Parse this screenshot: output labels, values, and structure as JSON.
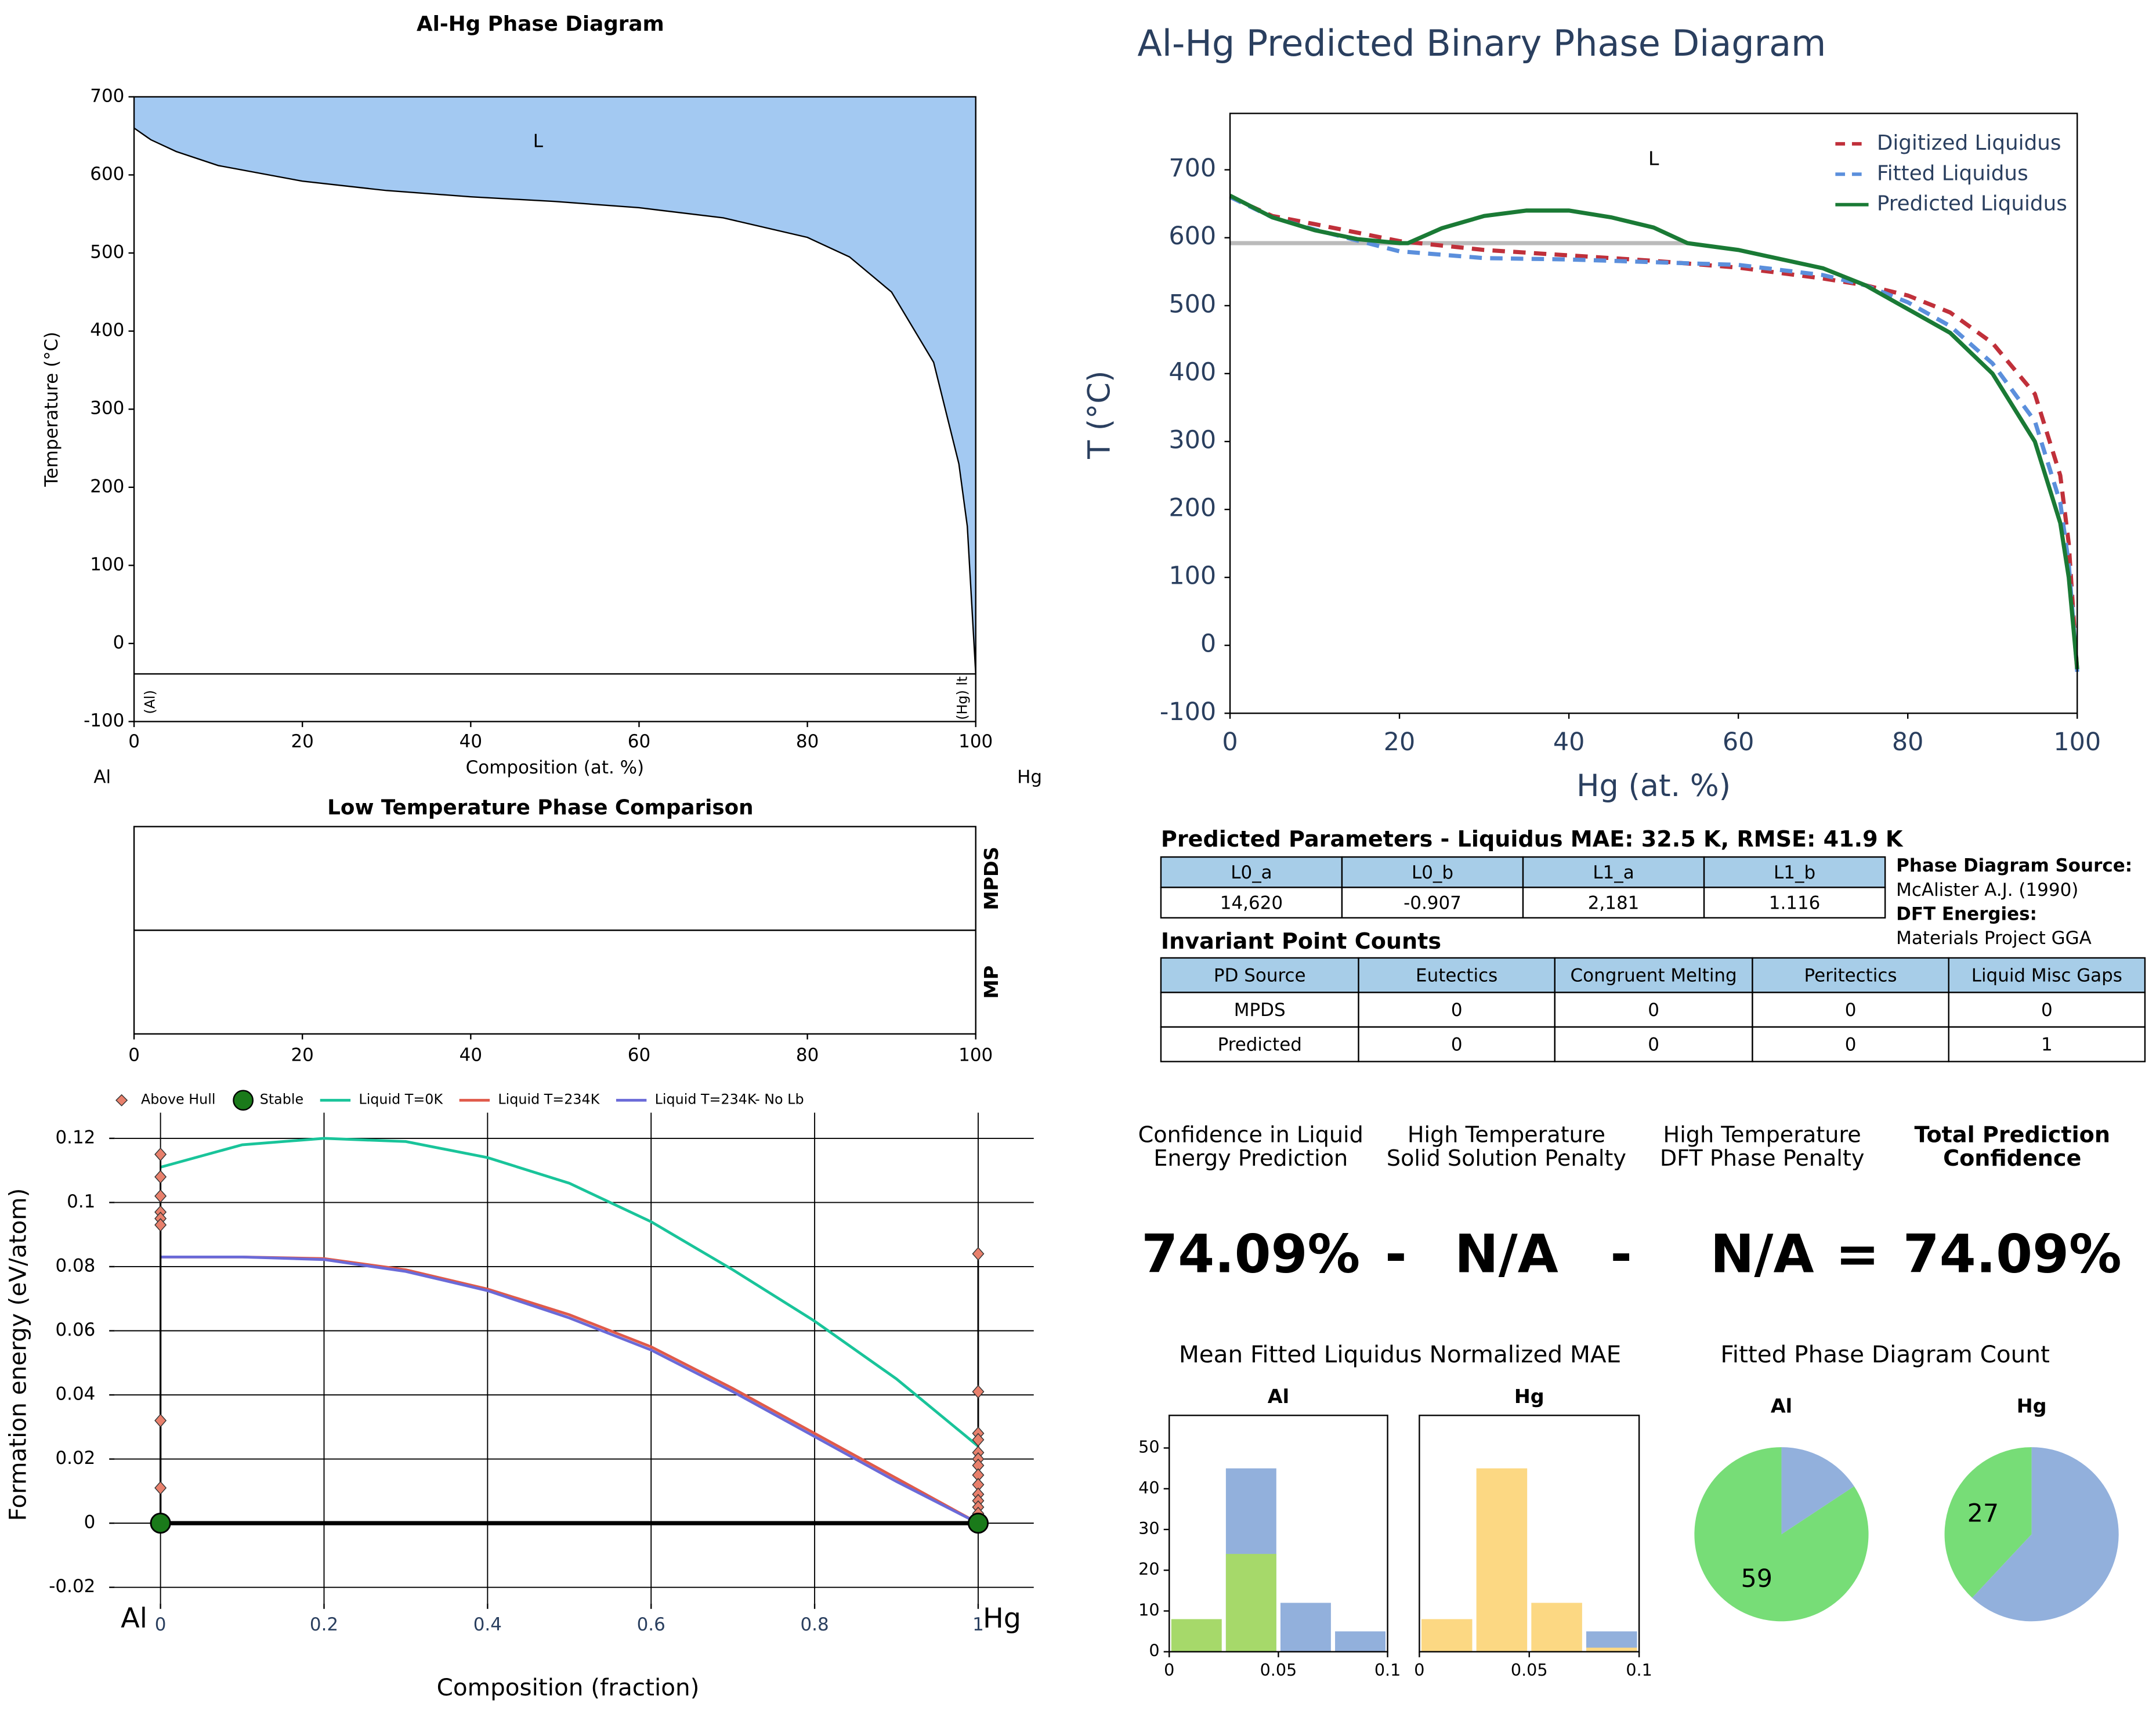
{
  "chart_data": [
    {
      "type": "area",
      "title": "Al-Hg Phase Diagram",
      "xlabel": "Composition (at. %)",
      "ylabel": "Temperature (°C)",
      "x": [
        0,
        2,
        5,
        10,
        20,
        30,
        40,
        50,
        60,
        70,
        80,
        85,
        90,
        95,
        98,
        99,
        100
      ],
      "values": [
        660,
        645,
        630,
        612,
        592,
        580,
        572,
        566,
        558,
        545,
        520,
        495,
        450,
        360,
        230,
        150,
        -39
      ],
      "color": "#a3c9f2",
      "xlim": [
        0,
        100
      ],
      "ylim": [
        -100,
        700
      ],
      "xticks": [
        0,
        20,
        40,
        60,
        80,
        100
      ],
      "yticks": [
        -100,
        0,
        100,
        200,
        300,
        400,
        500,
        600,
        700
      ],
      "hline": -39,
      "annotations": [
        {
          "text": "L",
          "x": 48,
          "y": 642
        },
        {
          "text": "(Al)",
          "x": 2,
          "y": -75,
          "rotation": -90
        },
        {
          "text": "(Hg) lt",
          "x": 98.5,
          "y": -70,
          "rotation": -90
        }
      ],
      "endpoints": [
        "Al",
        "Hg"
      ]
    },
    {
      "type": "strip",
      "title": "Low Temperature Phase Comparison",
      "categories": [
        "MPDS",
        "MP"
      ],
      "xlim": [
        0,
        100
      ],
      "xticks": [
        0,
        20,
        40,
        60,
        80,
        100
      ]
    },
    {
      "type": "hull",
      "xlabel": "Composition (fraction)",
      "ylabel": "Formation energy (eV/atom)",
      "xlim": [
        -0.056,
        1.068
      ],
      "ylim": [
        -0.025,
        0.128
      ],
      "xticks": [
        0,
        0.2,
        0.4,
        0.6,
        0.8,
        1
      ],
      "yticks": [
        -0.02,
        0,
        0.02,
        0.04,
        0.06,
        0.08,
        0.1,
        0.12
      ],
      "grid": true,
      "endpoints": [
        "Al",
        "Hg"
      ],
      "series": [
        {
          "name": "Above Hull",
          "type": "scatter",
          "marker": "diamond",
          "color": "#e8806c",
          "x": [
            0,
            0,
            0,
            0,
            0,
            0,
            0,
            0,
            1,
            1,
            1,
            1,
            1,
            1,
            1,
            1,
            1,
            1,
            1,
            1,
            1
          ],
          "values": [
            0.115,
            0.108,
            0.102,
            0.097,
            0.095,
            0.093,
            0.032,
            0.011,
            0.084,
            0.041,
            0.028,
            0.026,
            0.022,
            0.02,
            0.018,
            0.015,
            0.012,
            0.009,
            0.007,
            0.005,
            0.003
          ]
        },
        {
          "name": "Stable",
          "type": "scatter",
          "marker": "circle",
          "color": "#1a7a1a",
          "x": [
            0,
            1
          ],
          "values": [
            0,
            0
          ]
        },
        {
          "name": "Liquid T=0K",
          "type": "line",
          "color": "#19c49a",
          "x": [
            0,
            0.1,
            0.2,
            0.3,
            0.4,
            0.5,
            0.6,
            0.7,
            0.8,
            0.9,
            1
          ],
          "values": [
            0.111,
            0.118,
            0.12,
            0.119,
            0.114,
            0.106,
            0.094,
            0.079,
            0.063,
            0.045,
            0.024
          ]
        },
        {
          "name": "Liquid T=234K",
          "type": "line",
          "color": "#e05a4a",
          "x": [
            0,
            0.1,
            0.2,
            0.3,
            0.4,
            0.5,
            0.6,
            0.7,
            0.8,
            0.9,
            1
          ],
          "values": [
            0.083,
            0.083,
            0.0825,
            0.079,
            0.073,
            0.065,
            0.055,
            0.042,
            0.028,
            0.014,
            0
          ]
        },
        {
          "name": "Liquid T=234K- No Lb",
          "type": "line",
          "color": "#6a6ad8",
          "x": [
            0,
            0.1,
            0.2,
            0.3,
            0.4,
            0.5,
            0.6,
            0.7,
            0.8,
            0.9,
            1
          ],
          "values": [
            0.083,
            0.083,
            0.0822,
            0.0785,
            0.0725,
            0.064,
            0.054,
            0.041,
            0.027,
            0.013,
            0
          ]
        }
      ]
    },
    {
      "type": "line",
      "title": "Al-Hg Predicted Binary Phase Diagram",
      "xlabel": "Hg (at. %)",
      "ylabel": "T (°C)",
      "xlim": [
        0,
        100
      ],
      "ylim": [
        -100,
        783
      ],
      "xticks": [
        0,
        20,
        40,
        60,
        80,
        100
      ],
      "yticks": [
        -100,
        0,
        100,
        200,
        300,
        400,
        500,
        600,
        700
      ],
      "legend": "upper right",
      "hline": {
        "y": 592,
        "x": [
          0,
          54
        ],
        "color": "#bbbbbb"
      },
      "annotations": [
        {
          "text": "L",
          "x": 50,
          "y": 715
        }
      ],
      "series": [
        {
          "name": "Digitized Liquidus",
          "color": "#c0303a",
          "dash": true,
          "x": [
            0,
            5,
            10,
            20,
            30,
            40,
            50,
            60,
            70,
            75,
            80,
            85,
            90,
            95,
            98,
            99,
            100
          ],
          "values": [
            660,
            632,
            620,
            595,
            582,
            574,
            566,
            556,
            540,
            530,
            515,
            490,
            445,
            370,
            250,
            150,
            -39
          ]
        },
        {
          "name": "Fitted Liquidus",
          "color": "#5b8fdc",
          "dash": true,
          "x": [
            0,
            5,
            10,
            20,
            30,
            40,
            50,
            60,
            70,
            75,
            80,
            85,
            90,
            95,
            98,
            99,
            100
          ],
          "values": [
            660,
            630,
            612,
            580,
            570,
            568,
            564,
            560,
            545,
            530,
            505,
            470,
            415,
            330,
            210,
            120,
            -39
          ]
        },
        {
          "name": "Predicted Liquidus",
          "color": "#1a7a35",
          "dash": false,
          "x": [
            0,
            5,
            10,
            15,
            20,
            21,
            25,
            30,
            35,
            40,
            45,
            50,
            54,
            60,
            70,
            75,
            80,
            85,
            90,
            95,
            98,
            99,
            100
          ],
          "values": [
            662,
            630,
            611,
            598,
            592,
            592,
            614,
            632,
            640,
            640,
            630,
            615,
            592,
            582,
            555,
            530,
            495,
            460,
            400,
            300,
            180,
            100,
            -35
          ]
        }
      ]
    },
    {
      "type": "histogram",
      "title": "Mean Fitted Liquidus Normalized MAE",
      "bins": [
        0,
        0.025,
        0.05,
        0.075,
        0.1
      ],
      "xlim": [
        0,
        0.1
      ],
      "ylim": [
        0,
        58
      ],
      "xticks": [
        0,
        0.05,
        0.1
      ],
      "yticks": [
        0,
        10,
        20,
        30,
        40,
        50
      ],
      "subplots": [
        {
          "title": "Al",
          "series": [
            {
              "color": "#92b0dc",
              "values": [
                0,
                45,
                12,
                5
              ]
            },
            {
              "color": "#a6d96a",
              "values": [
                8,
                24,
                0,
                0
              ]
            }
          ]
        },
        {
          "title": "Hg",
          "series": [
            {
              "color": "#92b0dc",
              "values": [
                0,
                0,
                0,
                5
              ]
            },
            {
              "color": "#fcd883",
              "values": [
                8,
                45,
                12,
                1
              ]
            }
          ]
        }
      ]
    },
    {
      "type": "pie",
      "title": "Fitted Phase Diagram Count",
      "subplots": [
        {
          "title": "Al",
          "values": [
            59,
            11
          ],
          "value_labels": [
            "59",
            null
          ],
          "colors": [
            "#77dd77",
            "#92b0dc"
          ]
        },
        {
          "title": "Hg",
          "values": [
            27,
            44
          ],
          "value_labels": [
            "27",
            null
          ],
          "colors": [
            "#77dd77",
            "#92b0dc"
          ]
        }
      ]
    }
  ],
  "parameters": {
    "title": "Predicted Parameters - Liquidus MAE: 32.5 K, RMSE: 41.9 K",
    "header": [
      "L0_a",
      "L0_b",
      "L1_a",
      "L1_b"
    ],
    "rows": [
      [
        "14,620",
        "-0.907",
        "2,181",
        "1.116"
      ]
    ]
  },
  "invariants": {
    "title": "Invariant Point Counts",
    "header": [
      "PD Source",
      "Eutectics",
      "Congruent Melting",
      "Peritectics",
      "Liquid Misc Gaps"
    ],
    "rows": [
      [
        "MPDS",
        "0",
        "0",
        "0",
        "0"
      ],
      [
        "Predicted",
        "0",
        "0",
        "0",
        "1"
      ]
    ]
  },
  "source": [
    "Phase Diagram Source:",
    "McAlister A.J. (1990)",
    "DFT Energies:",
    "Materials Project GGA"
  ],
  "confidence": {
    "labels": [
      [
        "Confidence in Liquid",
        "Energy Prediction"
      ],
      [
        "High Temperature",
        "Solid Solution Penalty"
      ],
      [
        "High Temperature",
        "DFT Phase Penalty"
      ],
      [
        "Total Prediction",
        "Confidence"
      ]
    ],
    "values": [
      "74.09%",
      "N/A",
      "N/A",
      "74.09%"
    ],
    "operators": [
      "-",
      "-",
      "="
    ]
  }
}
